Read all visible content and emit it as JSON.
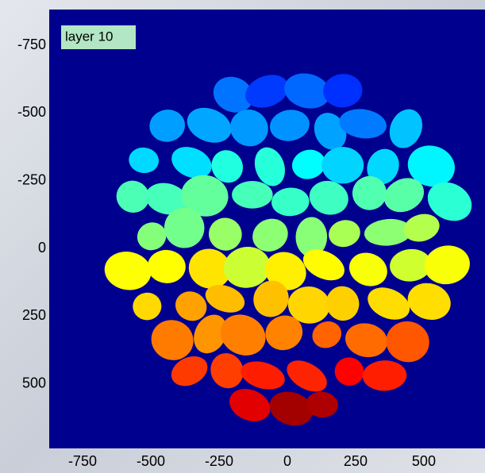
{
  "chart_data": {
    "type": "image",
    "annotation": "layer 10",
    "xlim": [
      -872,
      724
    ],
    "ylim": [
      -882,
      738
    ],
    "y_reversed": true,
    "xticks": [
      -750,
      -500,
      -250,
      0,
      250,
      500
    ],
    "yticks": [
      -750,
      -500,
      -250,
      0,
      250,
      500
    ],
    "background": "#00008f"
  }
}
